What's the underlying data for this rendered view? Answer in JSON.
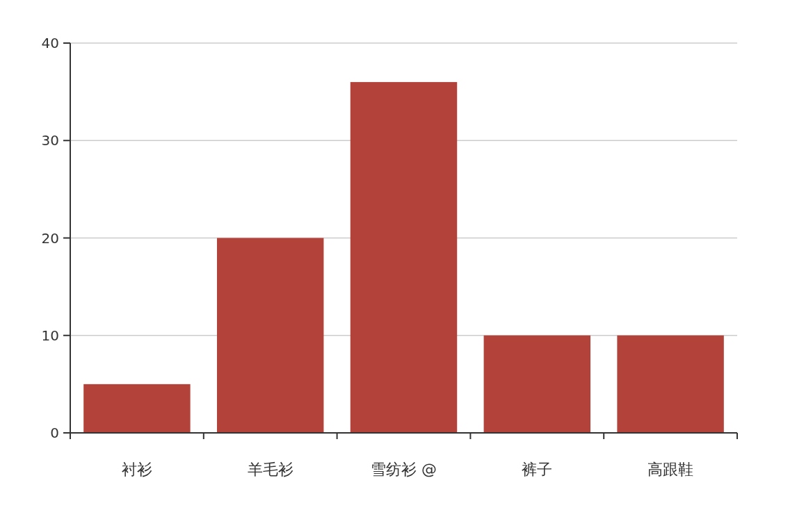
{
  "chart_data": {
    "type": "bar",
    "categories": [
      "衬衫",
      "羊毛衫",
      "雪纺衫 @",
      "裤子",
      "高跟鞋"
    ],
    "values": [
      5,
      20,
      36,
      10,
      10
    ],
    "color": "#b3433a",
    "ylim": [
      0,
      40
    ],
    "yticks": [
      0,
      10,
      20,
      30,
      40
    ],
    "grid": "y"
  }
}
